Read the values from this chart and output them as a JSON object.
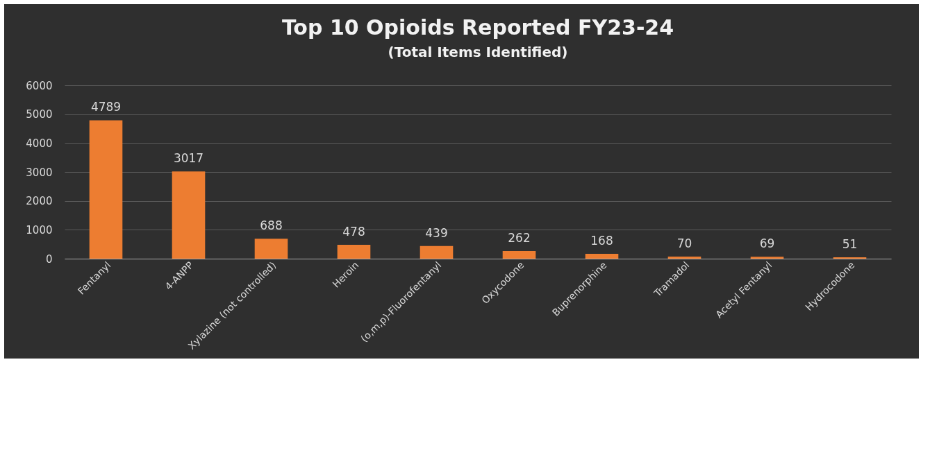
{
  "chart_data": {
    "type": "bar",
    "title": "Top 10 Opioids Reported FY23-24",
    "subtitle": "(Total Items Identified)",
    "categories": [
      "Fentanyl",
      "4-ANPP",
      "Xylazine (not controlled)",
      "Heroin",
      "(o,m,p)-Fluorofentanyl",
      "Oxycodone",
      "Buprenorphine",
      "Tramadol",
      "Acetyl Fentanyl",
      "Hydrocodone"
    ],
    "values": [
      4789,
      3017,
      688,
      478,
      439,
      262,
      168,
      70,
      69,
      51
    ],
    "color": "#ed7d31",
    "ylim": [
      0,
      6000
    ],
    "yticks": [
      0,
      1000,
      2000,
      3000,
      4000,
      5000,
      6000
    ],
    "grid": true,
    "data_labels": true
  }
}
